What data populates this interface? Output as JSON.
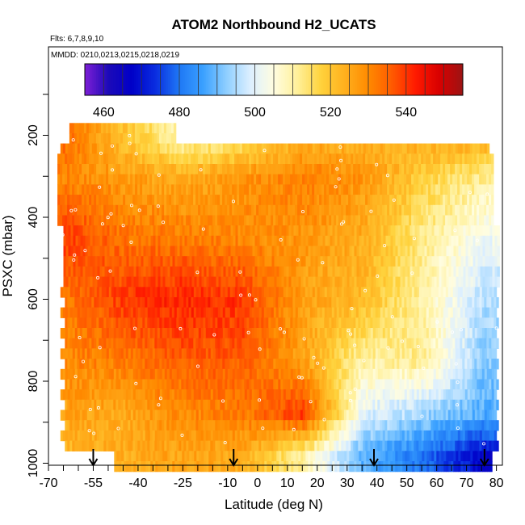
{
  "chart_data": {
    "type": "heatmap",
    "title": "ATOM2 Northbound H2_UCATS",
    "subtitle_flights": "Flts: 6,7,8,9,10",
    "subtitle_dates": "MMDD: 0210,0213,0215,0218,0219",
    "xlabel": "Latitude (deg N)",
    "ylabel": "PSXC (mbar)",
    "xlim": [
      -70,
      82
    ],
    "ylim": [
      1020,
      0
    ],
    "x_ticks": [
      -70,
      -55,
      -40,
      -25,
      -10,
      0,
      10,
      20,
      30,
      40,
      50,
      60,
      70,
      80
    ],
    "y_ticks": [
      200,
      400,
      600,
      800,
      1000
    ],
    "colorbar": {
      "min": 455,
      "max": 555,
      "ticks": [
        460,
        480,
        500,
        520,
        540
      ],
      "colors": [
        "#7e1fd6",
        "#1c0ab8",
        "#0000c8",
        "#0a2ee0",
        "#1f78f5",
        "#3aa0ff",
        "#8fcfff",
        "#dcefff",
        "#fffde0",
        "#fff09a",
        "#ffd23c",
        "#ffb01e",
        "#ff8a00",
        "#ff5a00",
        "#ff1a00",
        "#d80000",
        "#9c1414"
      ]
    },
    "flight_marker_latitudes": [
      -55,
      -8,
      39,
      76
    ],
    "value_field": {
      "description_levels_mbar": [
        170,
        1000
      ],
      "profile": [
        {
          "p": 200,
          "lat": [
            -65,
            -45,
            -25,
            -5,
            15,
            35,
            55,
            75
          ],
          "v": [
            535,
            520,
            508,
            512,
            522,
            522,
            526,
            526
          ]
        },
        {
          "p": 300,
          "lat": [
            -65,
            -45,
            -25,
            -5,
            15,
            35,
            55,
            75
          ],
          "v": [
            530,
            527,
            524,
            528,
            532,
            528,
            518,
            512
          ]
        },
        {
          "p": 450,
          "lat": [
            -65,
            -45,
            -25,
            -5,
            15,
            35,
            55,
            75
          ],
          "v": [
            540,
            533,
            532,
            530,
            528,
            524,
            512,
            502
          ]
        },
        {
          "p": 600,
          "lat": [
            -65,
            -45,
            -25,
            -5,
            15,
            35,
            55,
            75
          ],
          "v": [
            532,
            540,
            542,
            540,
            526,
            522,
            510,
            496
          ]
        },
        {
          "p": 750,
          "lat": [
            -65,
            -45,
            -25,
            -5,
            15,
            35,
            55,
            75
          ],
          "v": [
            530,
            532,
            536,
            536,
            526,
            510,
            512,
            492
          ]
        },
        {
          "p": 880,
          "lat": [
            -65,
            -45,
            -25,
            -5,
            15,
            35,
            55,
            75
          ],
          "v": [
            526,
            525,
            530,
            532,
            540,
            500,
            494,
            488
          ]
        },
        {
          "p": 980,
          "lat": [
            -65,
            -45,
            -25,
            -5,
            15,
            35,
            55,
            75
          ],
          "v": [
            522,
            524,
            526,
            524,
            510,
            488,
            480,
            468
          ]
        }
      ]
    }
  }
}
